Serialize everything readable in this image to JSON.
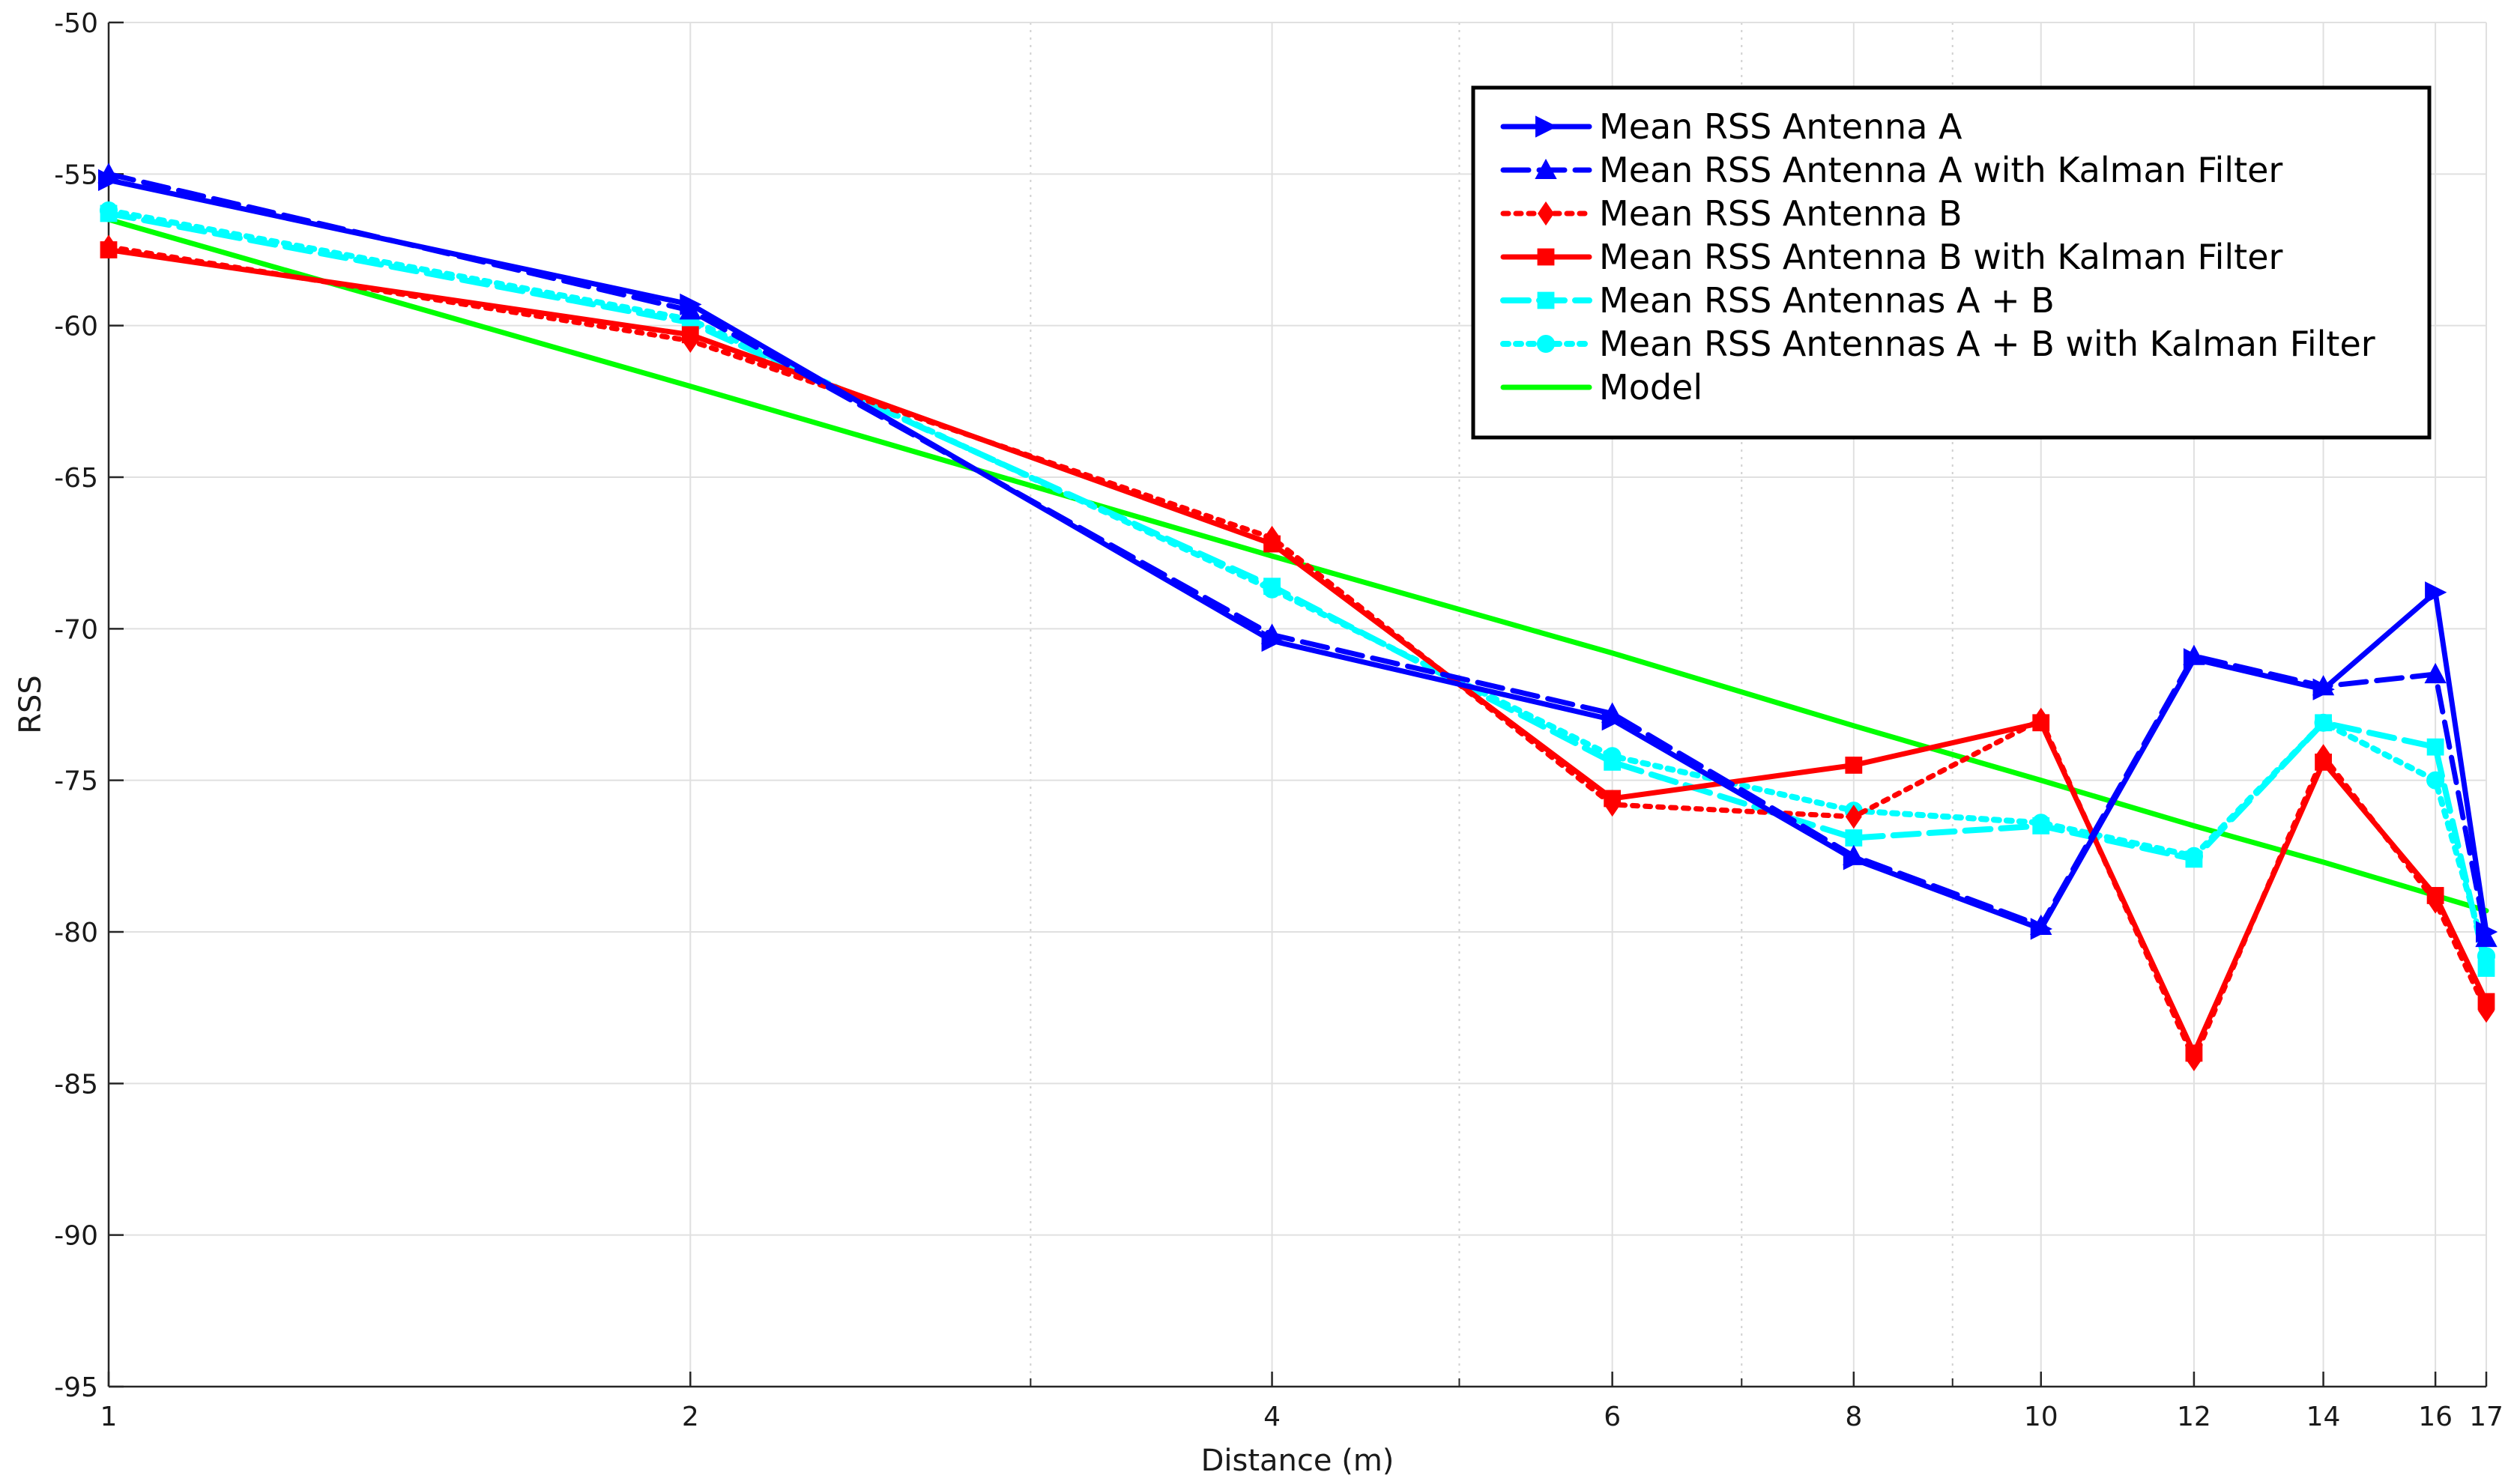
{
  "chart_data": {
    "type": "line",
    "xlabel": "Distance (m)",
    "ylabel": "RSS",
    "xscale": "log",
    "xlim": [
      1,
      17
    ],
    "ylim": [
      -95,
      -50
    ],
    "grid": true,
    "legend_position": "top-right",
    "x_ticks": [
      1,
      2,
      4,
      6,
      8,
      10,
      12,
      14,
      16,
      17
    ],
    "x_tick_labels": [
      "1",
      "2",
      "4",
      "6",
      "8",
      "10",
      "12",
      "14",
      "16",
      "17"
    ],
    "x_minor_grid": [
      3,
      5,
      7,
      9
    ],
    "y_ticks": [
      -95,
      -90,
      -85,
      -80,
      -75,
      -70,
      -65,
      -60,
      -55,
      -50
    ],
    "y_tick_labels": [
      "-95",
      "-90",
      "-85",
      "-80",
      "-75",
      "-70",
      "-65",
      "-60",
      "-55",
      "-50"
    ],
    "x": [
      1,
      2,
      4,
      6,
      8,
      10,
      12,
      14,
      16,
      17
    ],
    "series": [
      {
        "name": "Mean RSS Antenna A",
        "color": "#0000ff",
        "dash": "solid",
        "marker": "triangle-right",
        "values": [
          -55.2,
          -59.3,
          -70.4,
          -73.0,
          -77.6,
          -79.9,
          -71.0,
          -72.0,
          -68.8,
          -80.0
        ]
      },
      {
        "name": "Mean RSS Antenna A with Kalman Filter",
        "color": "#0000ff",
        "dash": "dashed",
        "marker": "triangle-up",
        "values": [
          -55.0,
          -59.5,
          -70.2,
          -72.8,
          -77.5,
          -79.8,
          -70.9,
          -71.9,
          -71.5,
          -80.2
        ]
      },
      {
        "name": "Mean RSS Antenna B",
        "color": "#ff0000",
        "dash": "dotted",
        "marker": "diamond",
        "values": [
          -57.4,
          -60.5,
          -67.0,
          -75.8,
          -76.2,
          -73.0,
          -84.2,
          -74.2,
          -79.0,
          -82.6
        ]
      },
      {
        "name": "Mean RSS Antenna B with Kalman Filter",
        "color": "#ff0000",
        "dash": "solid",
        "marker": "square",
        "values": [
          -57.5,
          -60.3,
          -67.2,
          -75.6,
          -74.5,
          -73.1,
          -84.0,
          -74.4,
          -78.8,
          -82.3
        ]
      },
      {
        "name": "Mean RSS Antennas A + B",
        "color": "#00ffff",
        "dash": "dashed",
        "marker": "square",
        "values": [
          -56.3,
          -59.9,
          -68.6,
          -74.4,
          -76.9,
          -76.5,
          -77.6,
          -73.1,
          -73.9,
          -81.2
        ]
      },
      {
        "name": "Mean RSS Antennas A + B with Kalman Filter",
        "color": "#00ffff",
        "dash": "dotted",
        "marker": "circle",
        "values": [
          -56.2,
          -59.8,
          -68.7,
          -74.2,
          -76.0,
          -76.4,
          -77.5,
          -73.1,
          -75.0,
          -80.8
        ]
      },
      {
        "name": "Model",
        "color": "#00ff00",
        "dash": "solid",
        "marker": "none",
        "values": [
          -56.5,
          -62.0,
          -67.6,
          -70.8,
          -73.2,
          -75.0,
          -76.5,
          -77.7,
          -78.8,
          -79.3
        ]
      }
    ]
  }
}
